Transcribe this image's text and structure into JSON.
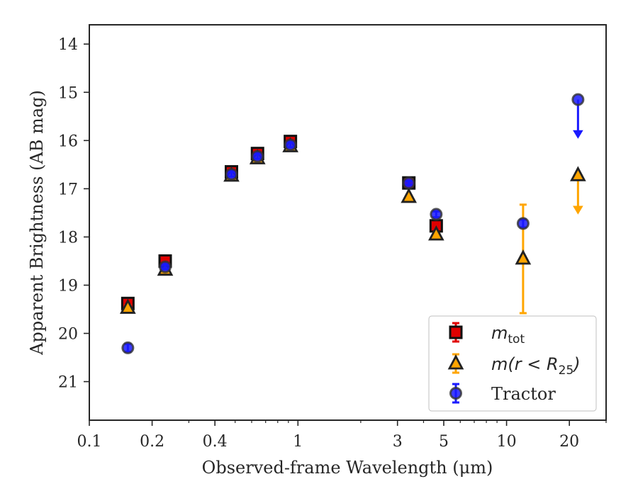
{
  "chart_data": {
    "type": "scatter",
    "xlabel": "Observed-frame Wavelength (μm)",
    "ylabel": "Apparent Brightness (AB mag)",
    "xscale": "log",
    "xlim": [
      0.1,
      30
    ],
    "ylim": [
      21.8,
      13.6
    ],
    "y_inverted": true,
    "xticks": [
      0.1,
      0.2,
      0.4,
      1,
      3,
      5,
      10,
      20
    ],
    "xtick_labels": [
      "0.1",
      "0.2",
      "0.4",
      "1",
      "3",
      "5",
      "10",
      "20"
    ],
    "yticks": [
      14,
      15,
      16,
      17,
      18,
      19,
      20,
      21
    ],
    "ytick_labels": [
      "14",
      "15",
      "16",
      "17",
      "18",
      "19",
      "20",
      "21"
    ],
    "legend_position": "lower-right",
    "grid": false,
    "series": [
      {
        "name": "m_tot",
        "legend_main": "m",
        "legend_sub": "tot",
        "marker": "square",
        "color": "#e00000",
        "points": [
          {
            "x": 0.153,
            "y": 19.38,
            "err": 0.1
          },
          {
            "x": 0.231,
            "y": 18.5,
            "err": 0.08
          },
          {
            "x": 0.48,
            "y": 16.65,
            "err": 0.07
          },
          {
            "x": 0.64,
            "y": 16.27,
            "err": 0.07
          },
          {
            "x": 0.92,
            "y": 16.02,
            "err": 0.07
          },
          {
            "x": 3.4,
            "y": 16.88,
            "err": 0.05
          },
          {
            "x": 4.6,
            "y": 17.77,
            "err": 0.06
          }
        ]
      },
      {
        "name": "m(r < R25)",
        "legend_main": "m(r < R",
        "legend_sub": "25",
        "legend_end": ")",
        "marker": "triangle",
        "color": "#ffa500",
        "points": [
          {
            "x": 0.153,
            "y": 19.47,
            "err": 0.05
          },
          {
            "x": 0.231,
            "y": 18.68,
            "err": 0.04
          },
          {
            "x": 0.48,
            "y": 16.73,
            "err": 0.03
          },
          {
            "x": 0.64,
            "y": 16.37,
            "err": 0.03
          },
          {
            "x": 0.92,
            "y": 16.12,
            "err": 0.03
          },
          {
            "x": 3.4,
            "y": 17.17,
            "err": 0.03
          },
          {
            "x": 4.6,
            "y": 17.95,
            "err": 0.04
          },
          {
            "x": 12.0,
            "y": 18.45,
            "err_upper": 1.12,
            "err_lower": 1.13
          },
          {
            "x": 22.0,
            "y": 16.72,
            "upper_limit": true
          }
        ]
      },
      {
        "name": "Tractor",
        "marker": "circle",
        "color": "#1a1aff",
        "points": [
          {
            "x": 0.153,
            "y": 20.3,
            "err": 0.08
          },
          {
            "x": 0.231,
            "y": 18.62,
            "err": 0.05
          },
          {
            "x": 0.48,
            "y": 16.7,
            "err": 0.05
          },
          {
            "x": 0.64,
            "y": 16.33,
            "err": 0.05
          },
          {
            "x": 0.92,
            "y": 16.09,
            "err": 0.05
          },
          {
            "x": 3.4,
            "y": 16.88,
            "err": 0.04
          },
          {
            "x": 4.6,
            "y": 17.53,
            "err": 0.06
          },
          {
            "x": 12.0,
            "y": 17.72,
            "err": 0.08
          },
          {
            "x": 22.0,
            "y": 15.15,
            "upper_limit": true
          }
        ]
      }
    ]
  }
}
